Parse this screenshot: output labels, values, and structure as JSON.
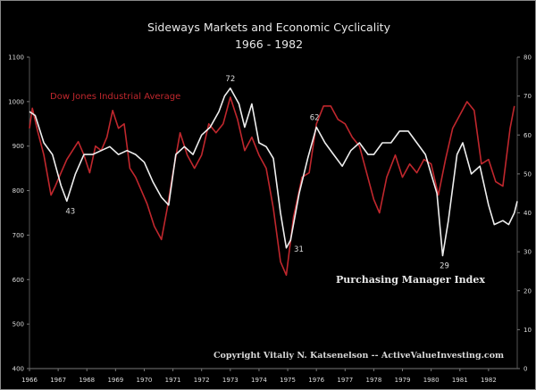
{
  "chart_data": {
    "type": "line",
    "title": "Sideways Markets and Economic Cyclicality",
    "subtitle": "1966 - 1982",
    "x_ticks": [
      "1966",
      "1967",
      "1968",
      "1969",
      "1970",
      "1971",
      "1972",
      "1973",
      "1974",
      "1975",
      "1976",
      "1977",
      "1978",
      "1979",
      "1980",
      "1981",
      "1982"
    ],
    "xlim": [
      1966,
      1983
    ],
    "y_left": {
      "ylim": [
        400,
        1100
      ],
      "ticks": [
        "400",
        "500",
        "600",
        "700",
        "800",
        "900",
        "1000",
        "1100"
      ]
    },
    "y_right": {
      "ylim": [
        0,
        80
      ],
      "ticks": [
        "0",
        "10",
        "20",
        "30",
        "40",
        "50",
        "60",
        "70",
        "80"
      ]
    },
    "grid": false,
    "series": [
      {
        "name": "Dow Jones Industrial Average",
        "axis": "left",
        "color": "#c0272d",
        "x": [
          1966.0,
          1966.1,
          1966.3,
          1966.5,
          1966.75,
          1966.9,
          1967.1,
          1967.3,
          1967.5,
          1967.7,
          1967.9,
          1968.1,
          1968.3,
          1968.5,
          1968.7,
          1968.9,
          1969.1,
          1969.3,
          1969.5,
          1969.7,
          1969.9,
          1970.1,
          1970.35,
          1970.6,
          1970.8,
          1971.0,
          1971.25,
          1971.5,
          1971.75,
          1972.0,
          1972.25,
          1972.5,
          1972.75,
          1973.0,
          1973.25,
          1973.5,
          1973.75,
          1974.0,
          1974.25,
          1974.5,
          1974.75,
          1974.95,
          1975.2,
          1975.5,
          1975.75,
          1976.0,
          1976.25,
          1976.5,
          1976.75,
          1977.0,
          1977.25,
          1977.5,
          1977.75,
          1978.0,
          1978.2,
          1978.45,
          1978.75,
          1979.0,
          1979.25,
          1979.5,
          1979.75,
          1980.0,
          1980.25,
          1980.5,
          1980.75,
          1981.0,
          1981.25,
          1981.5,
          1981.75,
          1982.0,
          1982.25,
          1982.5,
          1982.75,
          1982.9
        ],
        "values": [
          940,
          985,
          930,
          880,
          790,
          810,
          840,
          870,
          890,
          910,
          880,
          840,
          900,
          890,
          920,
          980,
          940,
          950,
          850,
          830,
          800,
          770,
          720,
          690,
          760,
          840,
          930,
          880,
          850,
          880,
          950,
          930,
          950,
          1010,
          960,
          890,
          920,
          880,
          850,
          760,
          640,
          610,
          740,
          830,
          840,
          950,
          990,
          990,
          960,
          950,
          920,
          900,
          840,
          780,
          750,
          830,
          880,
          830,
          860,
          840,
          870,
          860,
          790,
          870,
          940,
          970,
          1000,
          980,
          860,
          870,
          820,
          810,
          940,
          990
        ]
      },
      {
        "name": "Purchasing Manager Index",
        "axis": "right",
        "color": "#eeeeee",
        "x": [
          1966.0,
          1966.2,
          1966.5,
          1966.8,
          1967.1,
          1967.3,
          1967.6,
          1967.9,
          1968.2,
          1968.5,
          1968.8,
          1969.1,
          1969.4,
          1969.7,
          1970.0,
          1970.3,
          1970.6,
          1970.85,
          1971.1,
          1971.4,
          1971.7,
          1972.0,
          1972.3,
          1972.6,
          1972.8,
          1973.0,
          1973.3,
          1973.5,
          1973.75,
          1974.0,
          1974.25,
          1974.5,
          1974.75,
          1974.95,
          1975.1,
          1975.4,
          1975.7,
          1976.0,
          1976.3,
          1976.6,
          1976.9,
          1977.2,
          1977.5,
          1977.8,
          1978.0,
          1978.3,
          1978.6,
          1978.9,
          1979.2,
          1979.5,
          1979.8,
          1980.0,
          1980.2,
          1980.4,
          1980.6,
          1980.9,
          1981.1,
          1981.4,
          1981.7,
          1982.0,
          1982.2,
          1982.5,
          1982.7,
          1982.9,
          1983.0
        ],
        "values": [
          66,
          65,
          58,
          55,
          47,
          43,
          50,
          55,
          55,
          56,
          57,
          55,
          56,
          55,
          53,
          48,
          44,
          42,
          55,
          57,
          55,
          60,
          62,
          66,
          70,
          72,
          68,
          62,
          68,
          58,
          57,
          54,
          40,
          31,
          33,
          45,
          54,
          62,
          58,
          55,
          52,
          56,
          58,
          55,
          55,
          58,
          58,
          61,
          61,
          58,
          55,
          50,
          45,
          29,
          38,
          55,
          58,
          50,
          52,
          42,
          37,
          38,
          37,
          40,
          43
        ]
      }
    ],
    "annotations": [
      {
        "text": "43",
        "series": "Purchasing Manager Index",
        "x": 1967.3
      },
      {
        "text": "72",
        "series": "Purchasing Manager Index",
        "x": 1973.0
      },
      {
        "text": "62",
        "series": "Purchasing Manager Index",
        "x": 1976.0
      },
      {
        "text": "31",
        "series": "Purchasing Manager Index",
        "x": 1974.95
      },
      {
        "text": "29",
        "series": "Purchasing Manager Index",
        "x": 1980.4
      }
    ],
    "labels": {
      "dow": "Dow Jones Industrial Average",
      "pmi": "Purchasing Manager Index",
      "copyright": "Copyright Vitaliy N. Katsenelson  --  ActiveValueInvesting.com"
    }
  }
}
